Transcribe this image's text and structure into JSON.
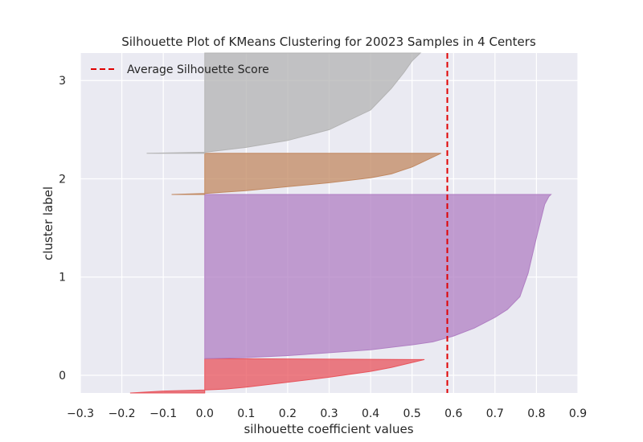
{
  "chart_data": {
    "type": "area",
    "title": "Silhouette Plot of KMeans Clustering for 20023 Samples in 4 Centers",
    "xlabel": "silhouette coefficient values",
    "ylabel": "cluster label",
    "xlim": [
      -0.3,
      0.9
    ],
    "ylim": [
      -0.18,
      3.28
    ],
    "grid": true,
    "legend_position": "top-left",
    "x_ticks": [
      -0.3,
      -0.2,
      -0.1,
      0.0,
      0.1,
      0.2,
      0.3,
      0.4,
      0.5,
      0.6,
      0.7,
      0.8,
      0.9
    ],
    "x_tick_labels": [
      "−0.3",
      "−0.2",
      "−0.1",
      "0.0",
      "0.1",
      "0.2",
      "0.3",
      "0.4",
      "0.5",
      "0.6",
      "0.7",
      "0.8",
      "0.9"
    ],
    "y_ticks": [
      0,
      1,
      2,
      3
    ],
    "y_tick_labels": [
      "0",
      "1",
      "2",
      "3"
    ],
    "average_silhouette_score": 0.585,
    "average_line": {
      "label": "Average Silhouette Score",
      "color": "#e00000",
      "style": "dashed"
    },
    "series": [
      {
        "cluster": "0",
        "color": "#e8535b",
        "y_start": -0.18,
        "y_end": 0.17,
        "profile": [
          [
            -0.18,
            -0.18
          ],
          [
            -0.1,
            -0.16
          ],
          [
            0.0,
            -0.15
          ],
          [
            0.05,
            -0.14
          ],
          [
            0.1,
            -0.12
          ],
          [
            0.2,
            -0.07
          ],
          [
            0.3,
            -0.02
          ],
          [
            0.4,
            0.04
          ],
          [
            0.45,
            0.08
          ],
          [
            0.5,
            0.13
          ],
          [
            0.53,
            0.16
          ]
        ]
      },
      {
        "cluster": "1",
        "color": "#b07fc3",
        "y_start": 0.17,
        "y_end": 1.84,
        "profile": [
          [
            0.0,
            0.17
          ],
          [
            0.1,
            0.18
          ],
          [
            0.2,
            0.2
          ],
          [
            0.3,
            0.23
          ],
          [
            0.4,
            0.26
          ],
          [
            0.5,
            0.31
          ],
          [
            0.55,
            0.34
          ],
          [
            0.6,
            0.4
          ],
          [
            0.65,
            0.48
          ],
          [
            0.7,
            0.59
          ],
          [
            0.73,
            0.67
          ],
          [
            0.76,
            0.8
          ],
          [
            0.78,
            1.04
          ],
          [
            0.8,
            1.4
          ],
          [
            0.82,
            1.74
          ],
          [
            0.83,
            1.82
          ],
          [
            0.835,
            1.84
          ]
        ]
      },
      {
        "cluster": "2",
        "color": "#c18860",
        "y_start": 1.84,
        "y_end": 2.26,
        "profile": [
          [
            -0.08,
            1.84
          ],
          [
            0.0,
            1.85
          ],
          [
            0.1,
            1.88
          ],
          [
            0.2,
            1.92
          ],
          [
            0.3,
            1.96
          ],
          [
            0.4,
            2.01
          ],
          [
            0.45,
            2.05
          ],
          [
            0.5,
            2.12
          ],
          [
            0.55,
            2.22
          ],
          [
            0.57,
            2.26
          ]
        ]
      },
      {
        "cluster": "3",
        "color": "#b3b3b3",
        "y_start": 2.26,
        "y_end": 3.28,
        "profile": [
          [
            -0.14,
            2.26
          ],
          [
            0.0,
            2.27
          ],
          [
            0.1,
            2.32
          ],
          [
            0.2,
            2.39
          ],
          [
            0.3,
            2.5
          ],
          [
            0.4,
            2.7
          ],
          [
            0.45,
            2.92
          ],
          [
            0.48,
            3.08
          ],
          [
            0.5,
            3.2
          ],
          [
            0.52,
            3.28
          ]
        ]
      }
    ]
  }
}
